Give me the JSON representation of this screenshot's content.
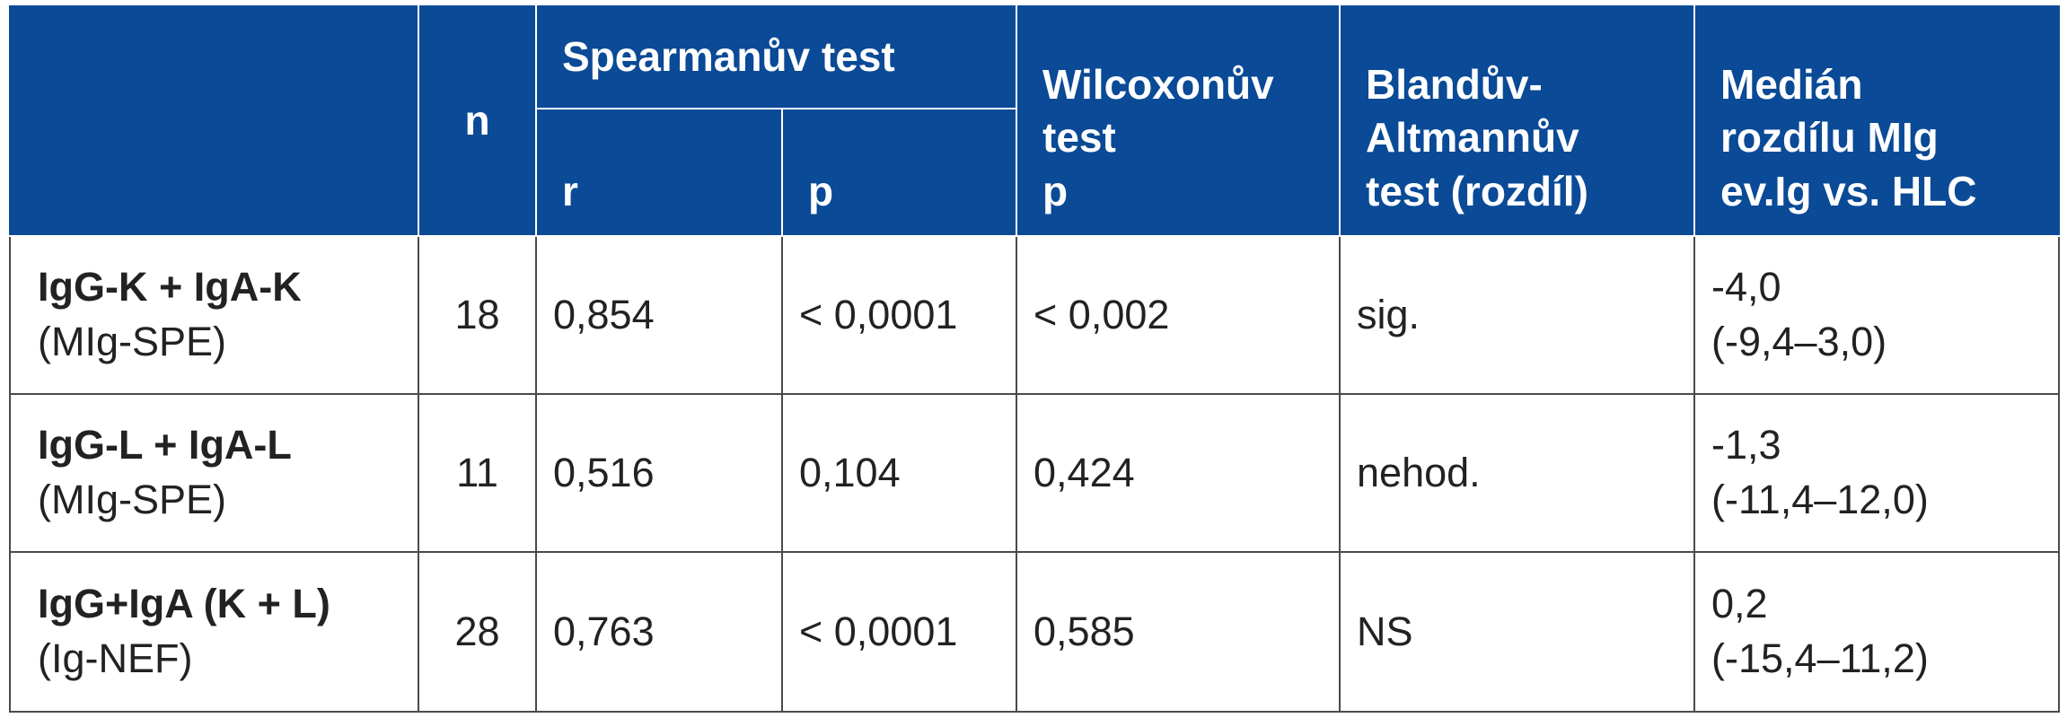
{
  "headers": {
    "n": "n",
    "spearman": "Spearmanův test",
    "spearman_r": "r",
    "spearman_p": "p",
    "wilcoxon_line1": "Wilcoxonův",
    "wilcoxon_line2": "test",
    "wilcoxon_line3": "p",
    "bland_line1": "Blandův-",
    "bland_line2": "Altmannův",
    "bland_line3": "test (rozdíl)",
    "median_line1": "Medián",
    "median_line2": "rozdílu MIg",
    "median_line3": "ev.Ig vs. HLC"
  },
  "rows": [
    {
      "label_main": "IgG-K + IgA-K",
      "label_sub": "(MIg-SPE)",
      "n": "18",
      "r": "0,854",
      "p": "< 0,0001",
      "wilcoxon_p": "< 0,002",
      "bland": "sig.",
      "median": "-4,0",
      "median_range": "(-9,4–3,0)"
    },
    {
      "label_main": "IgG-L + IgA-L",
      "label_sub": "(MIg-SPE)",
      "n": "11",
      "r": "0,516",
      "p": "0,104",
      "wilcoxon_p": "0,424",
      "bland": "nehod.",
      "median": "-1,3",
      "median_range": "(-11,4–12,0)"
    },
    {
      "label_main": "IgG+IgA (K + L)",
      "label_sub": "(Ig-NEF)",
      "n": "28",
      "r": "0,763",
      "p": "< 0,0001",
      "wilcoxon_p": "0,585",
      "bland": "NS",
      "median": "0,2",
      "median_range": "(-15,4–11,2)"
    }
  ]
}
